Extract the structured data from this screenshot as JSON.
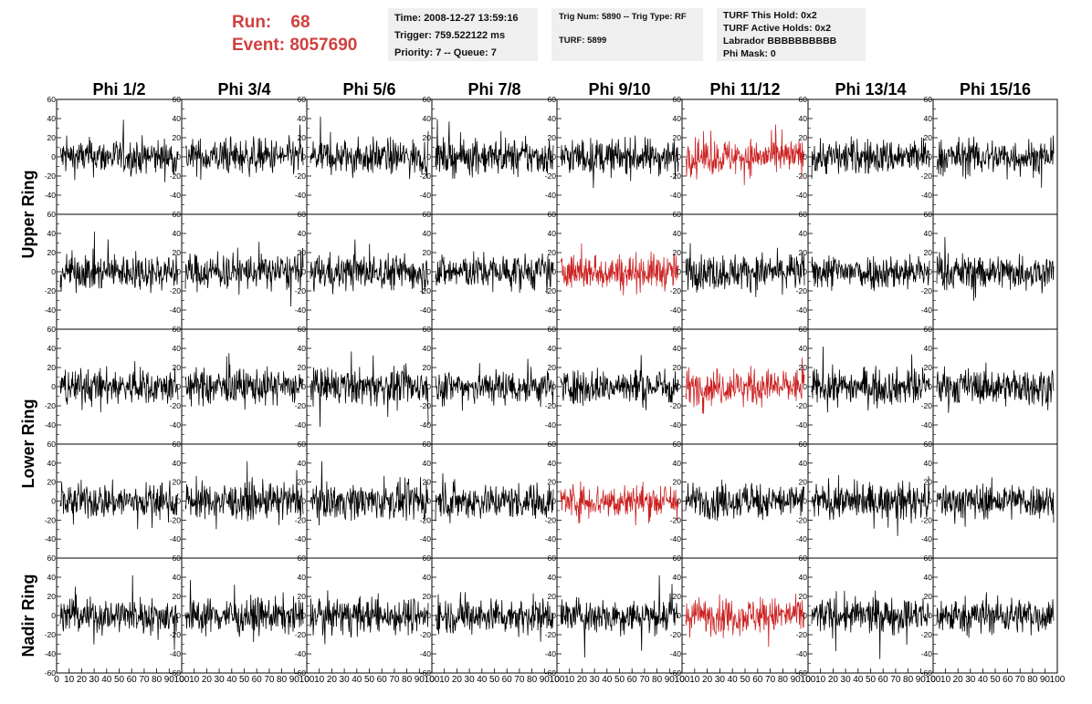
{
  "header": {
    "run_label": "Run:",
    "run_value": "68",
    "event_label": "Event:",
    "event_value": "8057690",
    "time": "Time: 2008-12-27 13:59:16",
    "trigger": "Trigger: 759.522122 ms",
    "priority": "Priority: 7 -- Queue: 7",
    "trig_num": "Trig Num: 5890 -- Trig Type: RF",
    "turf": "TURF: 5899",
    "turf_this_hold": "TURF This Hold: 0x2",
    "turf_active_holds": "TURF Active Holds: 0x2",
    "labrador": "Labrador BBBBBBBBBB",
    "phi_mask": "Phi Mask: 0"
  },
  "colors": {
    "header_red": "#d0403e",
    "trace_normal": "#000000",
    "trace_highlight": "#cc2222",
    "info_bg": "#efefef"
  },
  "chart_data": {
    "type": "line",
    "columns": [
      "Phi 1/2",
      "Phi 3/4",
      "Phi 5/6",
      "Phi 7/8",
      "Phi 9/10",
      "Phi 11/12",
      "Phi 13/14",
      "Phi 15/16"
    ],
    "row_labels": [
      "Upper Ring",
      "Lower Ring",
      "Nadir Ring"
    ],
    "rows": 5,
    "ylim": [
      -60,
      60
    ],
    "yticks": [
      -40,
      -20,
      0,
      20,
      40,
      60
    ],
    "xlim": [
      0,
      100
    ],
    "xtick_labels": [
      "0",
      "10",
      "20",
      "30",
      "40",
      "50",
      "60",
      "70",
      "80",
      "90",
      "100"
    ],
    "bottom_edge_labels": [
      "-60"
    ],
    "samples_per_trace": 260,
    "noise_amplitude": 18,
    "highlighted_panels": [
      [
        0,
        5
      ],
      [
        1,
        4
      ],
      [
        2,
        5
      ],
      [
        3,
        4
      ],
      [
        4,
        5
      ]
    ],
    "grid": false,
    "legend": "none"
  }
}
